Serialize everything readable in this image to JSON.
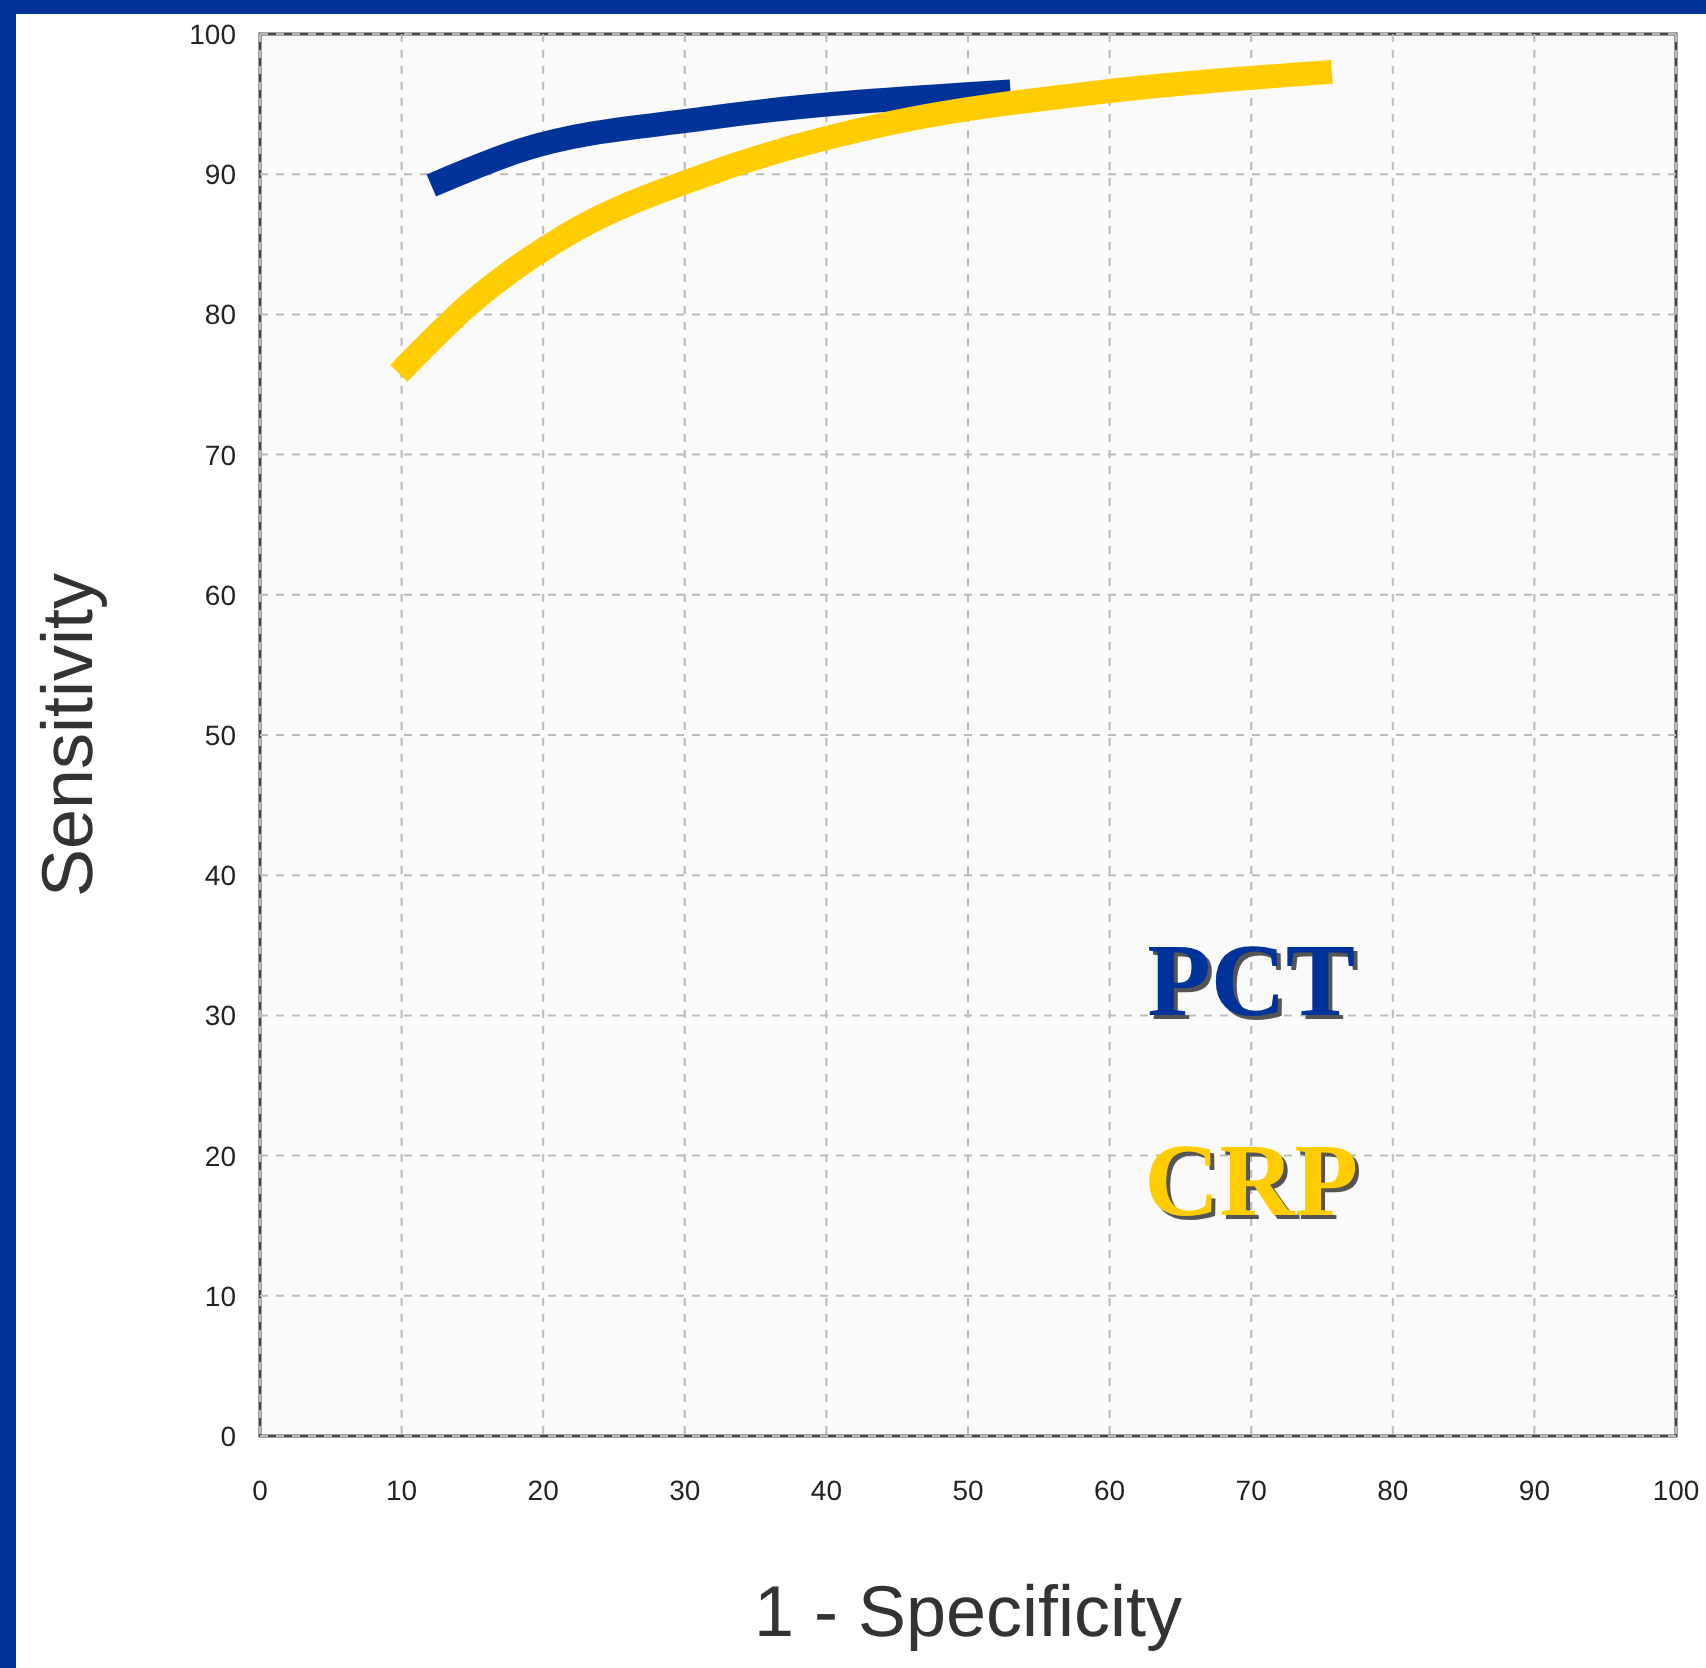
{
  "chart_data": {
    "type": "line",
    "xlabel": "1 - Specificity",
    "ylabel": "Sensitivity",
    "xlim": [
      0,
      100
    ],
    "ylim": [
      0,
      100
    ],
    "xticks": [
      0,
      10,
      20,
      30,
      40,
      50,
      60,
      70,
      80,
      90,
      100
    ],
    "yticks": [
      0,
      10,
      20,
      30,
      40,
      50,
      60,
      70,
      80,
      90,
      100
    ],
    "grid": true,
    "legend": "bottom right",
    "marker": "none",
    "line_style": "solid",
    "series": [
      {
        "name": "PCT",
        "color": "#003399",
        "x": [
          12.1,
          18.4,
          31.6,
          53
        ],
        "values": [
          89.2,
          91.7,
          94,
          95.9
        ]
      },
      {
        "name": "CRP",
        "color": "#ffcc00",
        "x": [
          9.8,
          15.1,
          21.7,
          31.6,
          44.8,
          58,
          75.7
        ],
        "values": [
          75.8,
          81,
          85.7,
          90,
          93.7,
          95.7,
          97.3
        ]
      }
    ]
  }
}
